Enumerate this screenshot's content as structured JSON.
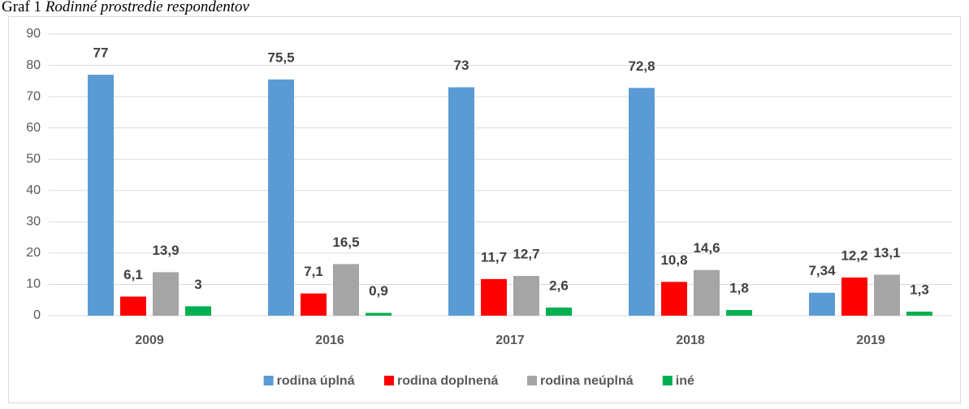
{
  "chart_data": {
    "type": "bar",
    "title_label": "Graf 1",
    "title": "Rodinné prostredie respondentov",
    "categories": [
      "2009",
      "2016",
      "2017",
      "2018",
      "2019"
    ],
    "series": [
      {
        "name": "rodina úplná",
        "color": "#5b9bd5",
        "values": [
          77,
          75.5,
          73,
          72.8,
          7.34
        ],
        "value_labels": [
          "77",
          "75,5",
          "73",
          "72,8",
          "7,34"
        ]
      },
      {
        "name": "rodina doplnená",
        "color": "#ff0000",
        "values": [
          6.1,
          7.1,
          11.7,
          10.8,
          12.2
        ],
        "value_labels": [
          "6,1",
          "7,1",
          "11,7",
          "10,8",
          "12,2"
        ]
      },
      {
        "name": "rodina neúplná",
        "color": "#a5a5a5",
        "values": [
          13.9,
          16.5,
          12.7,
          14.6,
          13.1
        ],
        "value_labels": [
          "13,9",
          "16,5",
          "12,7",
          "14,6",
          "13,1"
        ]
      },
      {
        "name": "iné",
        "color": "#00b050",
        "values": [
          3,
          0.9,
          2.6,
          1.8,
          1.3
        ],
        "value_labels": [
          "3",
          "0,9",
          "2,6",
          "1,8",
          "1,3"
        ]
      }
    ],
    "ylim": [
      0,
      90
    ],
    "yticks": [
      0,
      10,
      20,
      30,
      40,
      50,
      60,
      70,
      80,
      90
    ],
    "grid": true,
    "legend": "bottom"
  }
}
